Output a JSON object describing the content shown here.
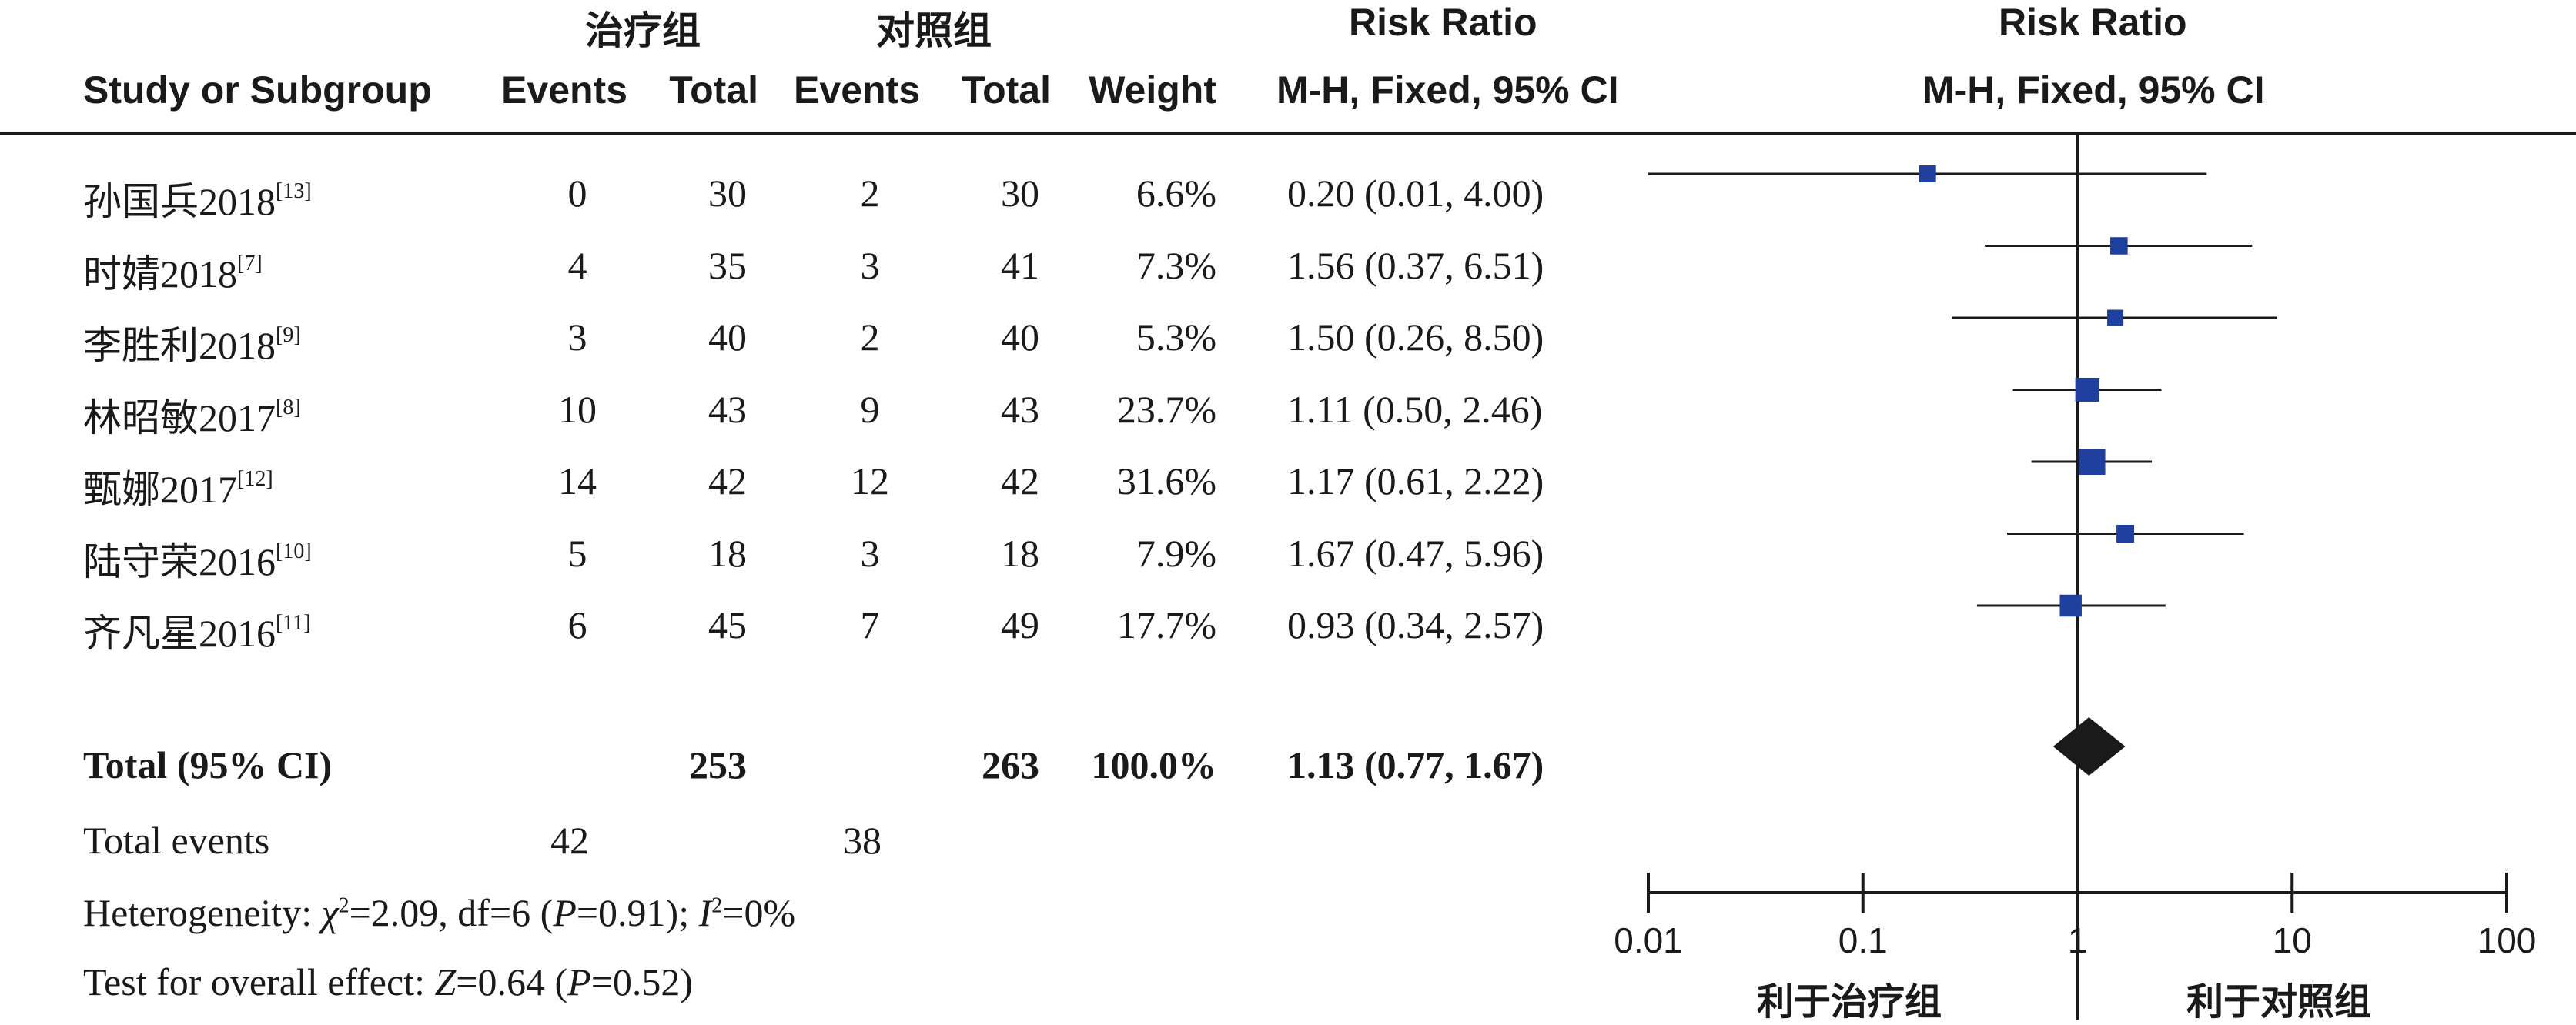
{
  "header": {
    "group_treatment": "治疗组",
    "group_control": "对照组",
    "study_col": "Study or Subgroup",
    "events": "Events",
    "total": "Total",
    "weight": "Weight",
    "rr_title": "Risk Ratio",
    "rr_method": "M-H, Fixed, 95% CI",
    "plot_title": "Risk Ratio",
    "plot_method": "M-H, Fixed, 95% CI"
  },
  "studies": [
    {
      "name": "孙国兵2018",
      "cite": "[13]",
      "t_events": "0",
      "t_total": "30",
      "c_events": "2",
      "c_total": "30",
      "weight": "6.6%",
      "ci_text": "0.20 (0.01, 4.00)"
    },
    {
      "name": "时婧2018",
      "cite": "[7]",
      "t_events": "4",
      "t_total": "35",
      "c_events": "3",
      "c_total": "41",
      "weight": "7.3%",
      "ci_text": "1.56 (0.37, 6.51)"
    },
    {
      "name": "李胜利2018",
      "cite": "[9]",
      "t_events": "3",
      "t_total": "40",
      "c_events": "2",
      "c_total": "40",
      "weight": "5.3%",
      "ci_text": "1.50 (0.26, 8.50)"
    },
    {
      "name": "林昭敏2017",
      "cite": "[8]",
      "t_events": "10",
      "t_total": "43",
      "c_events": "9",
      "c_total": "43",
      "weight": "23.7%",
      "ci_text": "1.11 (0.50, 2.46)"
    },
    {
      "name": "甄娜2017",
      "cite": "[12]",
      "t_events": "14",
      "t_total": "42",
      "c_events": "12",
      "c_total": "42",
      "weight": "31.6%",
      "ci_text": "1.17 (0.61, 2.22)"
    },
    {
      "name": "陆守荣2016",
      "cite": "[10]",
      "t_events": "5",
      "t_total": "18",
      "c_events": "3",
      "c_total": "18",
      "weight": "7.9%",
      "ci_text": "1.67 (0.47, 5.96)"
    },
    {
      "name": "齐凡星2016",
      "cite": "[11]",
      "t_events": "6",
      "t_total": "45",
      "c_events": "7",
      "c_total": "49",
      "weight": "17.7%",
      "ci_text": "0.93 (0.34, 2.57)"
    }
  ],
  "total_row": {
    "label": "Total (95% CI)",
    "t_total": "253",
    "c_total": "263",
    "weight": "100.0%",
    "ci_text": "1.13 (0.77, 1.67)"
  },
  "total_events": {
    "label": "Total events",
    "t_events": "42",
    "c_events": "38"
  },
  "heterogeneity": {
    "prefix": "Heterogeneity: ",
    "chi": "χ",
    "chi_rest": "=2.09, df=6 (",
    "p": "P",
    "p_rest": "=0.91); ",
    "i": "I",
    "i_rest": "=0%"
  },
  "overall": {
    "prefix": "Test for overall effect: ",
    "z": "Z",
    "z_rest": "=0.64 (",
    "p": "P",
    "p_rest": "=0.52)"
  },
  "axis": {
    "ticks": [
      "0.01",
      "0.1",
      "1",
      "10",
      "100"
    ],
    "favours_left": "利于治疗组",
    "favours_right": "利于对照组"
  },
  "colors": {
    "marker": "#2040a0",
    "diamond": "#1a1a1a",
    "line": "#1a1a1a"
  },
  "chart_data": {
    "type": "forest",
    "scale": "log",
    "xlim": [
      0.01,
      100
    ],
    "reference_line": 1,
    "points": [
      {
        "rr": 0.2,
        "lo": 0.01,
        "hi": 4.0,
        "weight": 6.6
      },
      {
        "rr": 1.56,
        "lo": 0.37,
        "hi": 6.51,
        "weight": 7.3
      },
      {
        "rr": 1.5,
        "lo": 0.26,
        "hi": 8.5,
        "weight": 5.3
      },
      {
        "rr": 1.11,
        "lo": 0.5,
        "hi": 2.46,
        "weight": 23.7
      },
      {
        "rr": 1.17,
        "lo": 0.61,
        "hi": 2.22,
        "weight": 31.6
      },
      {
        "rr": 1.67,
        "lo": 0.47,
        "hi": 5.96,
        "weight": 7.9
      },
      {
        "rr": 0.93,
        "lo": 0.34,
        "hi": 2.57,
        "weight": 17.7
      }
    ],
    "pooled": {
      "rr": 1.13,
      "lo": 0.77,
      "hi": 1.67
    }
  }
}
